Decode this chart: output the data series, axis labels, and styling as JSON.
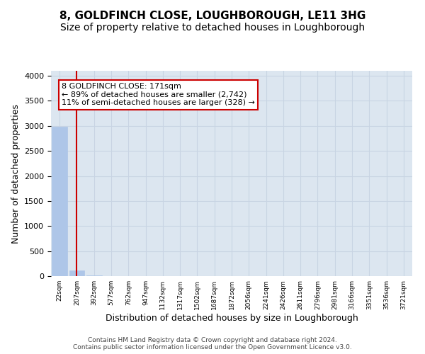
{
  "title": "8, GOLDFINCH CLOSE, LOUGHBOROUGH, LE11 3HG",
  "subtitle": "Size of property relative to detached houses in Loughborough",
  "xlabel": "Distribution of detached houses by size in Loughborough",
  "ylabel": "Number of detached properties",
  "bin_labels": [
    "22sqm",
    "207sqm",
    "392sqm",
    "577sqm",
    "762sqm",
    "947sqm",
    "1132sqm",
    "1317sqm",
    "1502sqm",
    "1687sqm",
    "1872sqm",
    "2056sqm",
    "2241sqm",
    "2426sqm",
    "2611sqm",
    "2796sqm",
    "2981sqm",
    "3166sqm",
    "3351sqm",
    "3536sqm",
    "3721sqm"
  ],
  "bar_heights": [
    2985,
    110,
    10,
    5,
    3,
    2,
    1,
    1,
    1,
    0,
    0,
    0,
    0,
    0,
    0,
    0,
    0,
    0,
    0,
    0,
    0
  ],
  "bar_color": "#aec6e8",
  "vline_x": 1.0,
  "vline_color": "#cc0000",
  "annotation_text": "8 GOLDFINCH CLOSE: 171sqm\n← 89% of detached houses are smaller (2,742)\n11% of semi-detached houses are larger (328) →",
  "box_edgecolor": "#cc0000",
  "ylim": [
    0,
    4100
  ],
  "yticks": [
    0,
    500,
    1000,
    1500,
    2000,
    2500,
    3000,
    3500,
    4000
  ],
  "grid_color": "#c8d4e3",
  "background_color": "#dce6f0",
  "footer_text": "Contains HM Land Registry data © Crown copyright and database right 2024.\nContains public sector information licensed under the Open Government Licence v3.0.",
  "title_fontsize": 11,
  "subtitle_fontsize": 10,
  "xlabel_fontsize": 9,
  "ylabel_fontsize": 9,
  "annotation_fontsize": 8,
  "tick_fontsize": 6.5,
  "ytick_fontsize": 8
}
